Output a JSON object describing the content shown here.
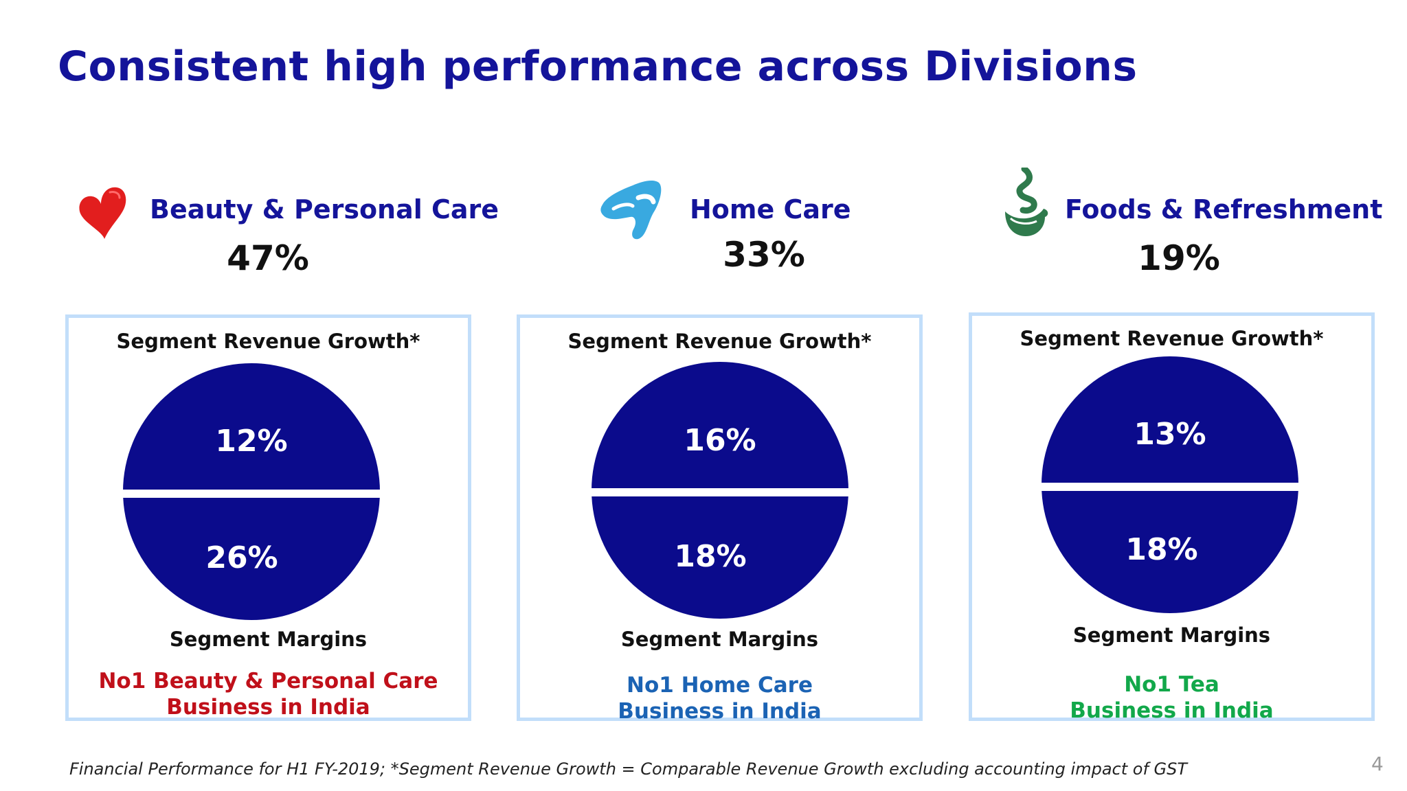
{
  "title": "Consistent high performance across Divisions",
  "colors": {
    "title": "#14149a",
    "circle_fill": "#0b0b8c",
    "card_border": "#c2defa",
    "beauty_tag": "#c0101a",
    "home_tag": "#1b63b4",
    "foods_tag": "#12a84a"
  },
  "divisions": [
    {
      "icon": "heart-icon",
      "name": "Beauty & Personal Care",
      "share": "47%",
      "card": {
        "top_label": "Segment Revenue Growth*",
        "growth": "12%",
        "margin": "26%",
        "bottom_label": "Segment Margins",
        "tagline_1": "No1 Beauty & Personal Care",
        "tagline_2": "Business in India"
      }
    },
    {
      "icon": "home-care-icon",
      "name": "Home Care",
      "share": "33%",
      "card": {
        "top_label": "Segment Revenue Growth*",
        "growth": "16%",
        "margin": "18%",
        "bottom_label": "Segment Margins",
        "tagline_1": "No1 Home Care",
        "tagline_2": "Business in India"
      }
    },
    {
      "icon": "tea-cup-icon",
      "name": "Foods & Refreshment",
      "share": "19%",
      "card": {
        "top_label": "Segment Revenue Growth*",
        "growth": "13%",
        "margin": "18%",
        "bottom_label": "Segment Margins",
        "tagline_1": "No1 Tea",
        "tagline_2": "Business in India"
      }
    }
  ],
  "footnote": "Financial Performance for H1 FY-2019; *Segment Revenue Growth = Comparable Revenue Growth excluding accounting impact of GST",
  "page_number": "4"
}
